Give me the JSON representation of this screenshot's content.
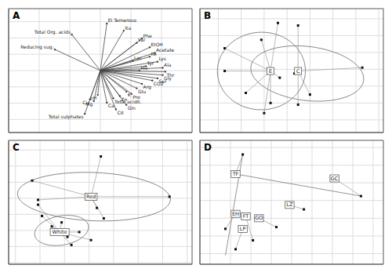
{
  "chart_data": [
    {
      "type": "biplot",
      "title": "A",
      "color": "#444444",
      "grid": true,
      "tick_labels": false,
      "xlim": [
        -0.6,
        0.6
      ],
      "ylim": [
        -0.95,
        0.95
      ],
      "xticks": [
        -0.6,
        -0.4,
        -0.2,
        0,
        0.2,
        0.4,
        0.6
      ],
      "yticks": [
        -0.75,
        -0.5,
        -0.25,
        0,
        0.25,
        0.5,
        0.75
      ],
      "origin": [
        0,
        0
      ],
      "vectors": [
        {
          "label": "El Temeroso",
          "x": 0.0425,
          "y": 0.7225
        },
        {
          "label": "Ita",
          "x": 0.153,
          "y": 0.612
        },
        {
          "label": "Total Org. acids",
          "x": -0.187,
          "y": 0.5525
        },
        {
          "label": "Phe",
          "x": 0.272,
          "y": 0.493
        },
        {
          "label": "Val",
          "x": 0.238,
          "y": 0.425
        },
        {
          "label": "EtOH",
          "x": 0.323,
          "y": 0.357
        },
        {
          "label": "Reducing sug.",
          "x": -0.2975,
          "y": 0.323
        },
        {
          "label": "Acetate",
          "x": 0.357,
          "y": 0.272
        },
        {
          "label": "Ile",
          "x": 0.323,
          "y": 0.2125
        },
        {
          "label": "Lac",
          "x": 0.2125,
          "y": 0.153
        },
        {
          "label": "Lys",
          "x": 0.374,
          "y": 0.136
        },
        {
          "label": "Tyr",
          "x": 0.2975,
          "y": 0.068
        },
        {
          "label": "Ala",
          "x": 0.408,
          "y": 0.0425
        },
        {
          "label": "His",
          "x": 0.255,
          "y": 0
        },
        {
          "label": "Thr",
          "x": 0.425,
          "y": -0.017
        },
        {
          "label": "Gly",
          "x": 0.408,
          "y": -0.068
        },
        {
          "label": "Ser",
          "x": 0.374,
          "y": -0.119
        },
        {
          "label": "CO2",
          "x": 0.34,
          "y": -0.153
        },
        {
          "label": "Arg",
          "x": 0.272,
          "y": -0.204
        },
        {
          "label": "Glu",
          "x": 0.238,
          "y": -0.272
        },
        {
          "label": "K",
          "x": 0.17,
          "y": -0.323
        },
        {
          "label": "Pro",
          "x": 0.204,
          "y": -0.357
        },
        {
          "label": "pH",
          "x": -0.017,
          "y": -0.374
        },
        {
          "label": "Zn",
          "x": 0.1275,
          "y": -0.391
        },
        {
          "label": "Total acidit.",
          "x": 0.085,
          "y": -0.425
        },
        {
          "label": "Cu",
          "x": -0.068,
          "y": -0.442
        },
        {
          "label": "Mg",
          "x": -0.0425,
          "y": -0.4675
        },
        {
          "label": "Ca",
          "x": 0.0425,
          "y": -0.493
        },
        {
          "label": "Gln",
          "x": 0.17,
          "y": -0.527
        },
        {
          "label": "Total sulphates",
          "x": -0.102,
          "y": -0.663
        },
        {
          "label": "Cit",
          "x": 0.102,
          "y": -0.595
        }
      ]
    },
    {
      "type": "ordination",
      "title": "B",
      "color": "#111111",
      "grid": true,
      "tick_labels": false,
      "xlim": [
        -0.95,
        1.05
      ],
      "ylim": [
        -0.75,
        0.72
      ],
      "xticks": [
        -0.75,
        -0.5,
        -0.25,
        0,
        0.25,
        0.5,
        0.75,
        1
      ],
      "yticks": [
        -0.6,
        -0.4,
        -0.2,
        0,
        0.2,
        0.4,
        0.6
      ],
      "groups": [
        {
          "label": "E",
          "centroid": [
            -0.18,
            -0.02
          ],
          "points": [
            [
              -0.68,
              0.25
            ],
            [
              -0.68,
              -0.02
            ],
            [
              -0.45,
              -0.28
            ],
            [
              -0.28,
              0.35
            ],
            [
              -0.1,
              0.55
            ],
            [
              -0.08,
              -0.1
            ],
            [
              -0.18,
              -0.4
            ],
            [
              -0.25,
              -0.52
            ]
          ],
          "ellipse": {
            "cx": -0.28,
            "cy": -0.02,
            "a": 0.48,
            "b": 0.46,
            "angle": 5
          }
        },
        {
          "label": "C",
          "centroid": [
            0.12,
            -0.02
          ],
          "points": [
            [
              0.12,
              0.52
            ],
            [
              0.08,
              -0.05
            ],
            [
              0.12,
              -0.42
            ],
            [
              0.25,
              -0.3
            ],
            [
              0.82,
              0.02
            ]
          ],
          "ellipse": {
            "cx": 0.22,
            "cy": -0.05,
            "a": 0.62,
            "b": 0.32,
            "angle": -8
          }
        }
      ]
    },
    {
      "type": "ordination",
      "title": "C",
      "color": "#111111",
      "grid": true,
      "tick_labels": false,
      "xlim": [
        -0.82,
        1.05
      ],
      "ylim": [
        -0.82,
        0.72
      ],
      "xticks": [
        -0.75,
        -0.5,
        -0.25,
        0,
        0.25,
        0.5,
        0.75,
        1
      ],
      "yticks": [
        -0.8,
        -0.6,
        -0.4,
        -0.2,
        0,
        0.2,
        0.4,
        0.6
      ],
      "groups": [
        {
          "label": "Red",
          "centroid": [
            0.02,
            0.02
          ],
          "points": [
            [
              -0.58,
              0.22
            ],
            [
              -0.52,
              -0.02
            ],
            [
              0.12,
              0.52
            ],
            [
              0.08,
              -0.12
            ],
            [
              0.15,
              -0.25
            ],
            [
              0.82,
              0.02
            ]
          ],
          "ellipse": {
            "cx": 0.05,
            "cy": 0.02,
            "a": 0.78,
            "b": 0.3,
            "angle": -3
          }
        },
        {
          "label": "White",
          "centroid": [
            -0.3,
            -0.42
          ],
          "points": [
            [
              -0.52,
              -0.08
            ],
            [
              -0.48,
              -0.22
            ],
            [
              -0.38,
              -0.35
            ],
            [
              -0.28,
              -0.3
            ],
            [
              -0.22,
              -0.48
            ],
            [
              -0.18,
              -0.58
            ],
            [
              -0.1,
              -0.42
            ],
            [
              0.02,
              -0.52
            ]
          ],
          "ellipse": {
            "cx": -0.28,
            "cy": -0.4,
            "a": 0.28,
            "b": 0.18,
            "angle": 15
          }
        }
      ]
    },
    {
      "type": "ordination",
      "title": "D",
      "color": "#111111",
      "grid": true,
      "tick_labels": false,
      "xlim": [
        -0.7,
        1.1
      ],
      "ylim": [
        -0.72,
        0.68
      ],
      "xticks": [
        -0.6,
        -0.4,
        -0.2,
        0,
        0.2,
        0.4,
        0.6,
        0.8,
        1
      ],
      "yticks": [
        -0.6,
        -0.4,
        -0.2,
        0,
        0.2,
        0.4,
        0.6
      ],
      "groups": [
        {
          "label": "GC",
          "centroid": [
            0.62,
            0.25
          ],
          "points": [
            [
              0.62,
              0.25
            ],
            [
              0.88,
              0.05
            ]
          ]
        },
        {
          "label": "TF",
          "centroid": [
            -0.35,
            0.3
          ],
          "points": [
            [
              -0.35,
              0.3
            ],
            [
              -0.28,
              0.52
            ]
          ]
        },
        {
          "label": "LZ",
          "centroid": [
            0.18,
            -0.05
          ],
          "points": [
            [
              0.18,
              -0.05
            ],
            [
              0.32,
              -0.1
            ]
          ]
        },
        {
          "label": "EH",
          "centroid": [
            -0.35,
            -0.15
          ],
          "points": [
            [
              -0.35,
              -0.15
            ],
            [
              -0.45,
              -0.32
            ]
          ]
        },
        {
          "label": "FT",
          "centroid": [
            -0.25,
            -0.18
          ],
          "points": [
            [
              -0.25,
              -0.18
            ],
            [
              -0.18,
              -0.45
            ]
          ]
        },
        {
          "label": "GO",
          "centroid": [
            -0.12,
            -0.2
          ],
          "points": [
            [
              -0.12,
              -0.2
            ],
            [
              0.05,
              -0.3
            ]
          ]
        },
        {
          "label": "LP",
          "centroid": [
            -0.28,
            -0.32
          ],
          "points": [
            [
              -0.28,
              -0.32
            ],
            [
              -0.35,
              -0.55
            ]
          ]
        }
      ],
      "lines": [
        [
          [
            -0.35,
            0.3
          ],
          [
            0.88,
            0.05
          ]
        ],
        [
          [
            -0.28,
            0.52
          ],
          [
            -0.45,
            -0.62
          ]
        ]
      ]
    }
  ]
}
